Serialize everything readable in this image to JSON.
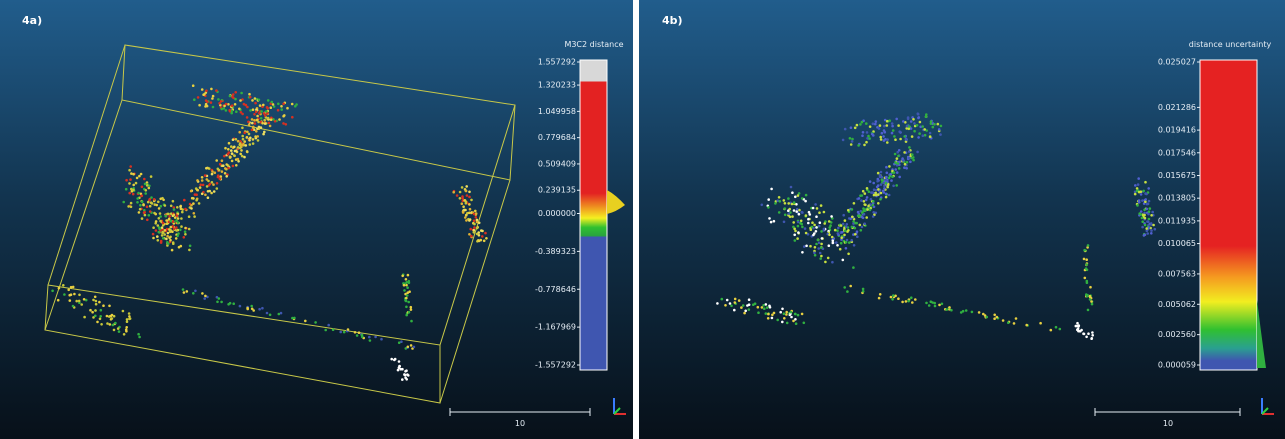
{
  "panels": [
    {
      "label": "4a)",
      "scale_title": "M3C2 distance",
      "scale_ticks": [
        "1.557292",
        "1.320233",
        "1.049958",
        "0.779684",
        "0.509409",
        "0.239135",
        "0.000000",
        "-0.389323",
        "-0.778646",
        "-1.167969",
        "-1.557292"
      ],
      "scale_bar_label": "10"
    },
    {
      "label": "4b)",
      "scale_title": "distance uncertainty",
      "scale_ticks": [
        "0.025027",
        "0.021286",
        "0.019416",
        "0.017546",
        "0.015675",
        "0.013805",
        "0.011935",
        "0.010065",
        "0.007563",
        "0.005062",
        "0.002560",
        "0.000059"
      ],
      "scale_bar_label": "10"
    }
  ]
}
